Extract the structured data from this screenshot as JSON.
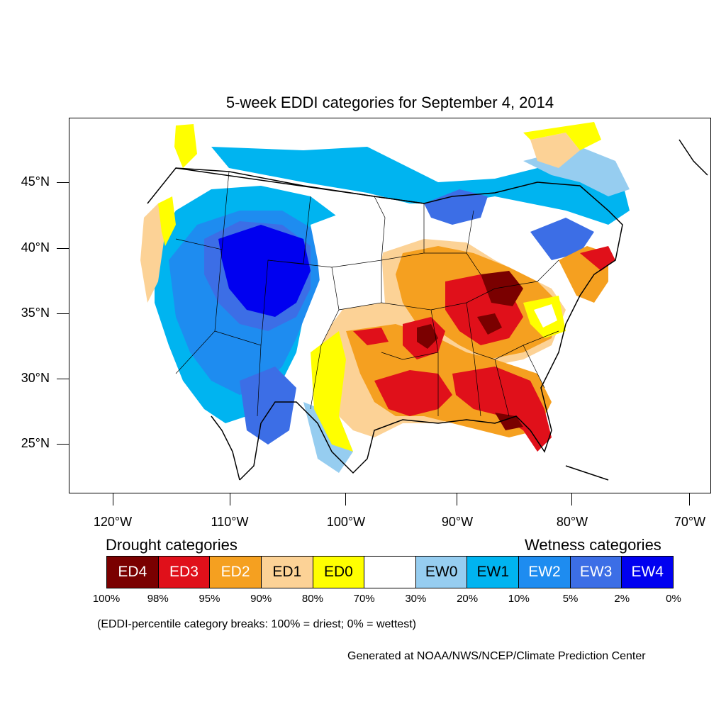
{
  "title": "5-week EDDI categories for September 4, 2014",
  "axes": {
    "lat_labels": [
      "45°N",
      "40°N",
      "35°N",
      "30°N",
      "25°N"
    ],
    "lon_labels": [
      "120°W",
      "110°W",
      "100°W",
      "90°W",
      "80°W",
      "70°W"
    ]
  },
  "legend": {
    "drought_title": "Drought categories",
    "wetness_title": "Wetness categories",
    "categories": [
      {
        "label": "ED4",
        "color": "#7a0000",
        "text_color": "#ffffff"
      },
      {
        "label": "ED3",
        "color": "#e0101a",
        "text_color": "#ffffff"
      },
      {
        "label": "ED2",
        "color": "#f5a020",
        "text_color": "#ffffff"
      },
      {
        "label": "ED1",
        "color": "#fcd296",
        "text_color": "#000000"
      },
      {
        "label": "ED0",
        "color": "#ffff00",
        "text_color": "#000000"
      },
      {
        "label": "",
        "color": "#ffffff",
        "text_color": "#000000"
      },
      {
        "label": "EW0",
        "color": "#96cdf0",
        "text_color": "#000000"
      },
      {
        "label": "EW1",
        "color": "#00b4f0",
        "text_color": "#000000"
      },
      {
        "label": "EW2",
        "color": "#1e8cf0",
        "text_color": "#ffffff"
      },
      {
        "label": "EW3",
        "color": "#3c6ee6",
        "text_color": "#ffffff"
      },
      {
        "label": "EW4",
        "color": "#0000f0",
        "text_color": "#ffffff"
      }
    ],
    "breaks": [
      "100%",
      "98%",
      "95%",
      "90%",
      "80%",
      "70%",
      "30%",
      "20%",
      "10%",
      "5%",
      "2%",
      "0%"
    ]
  },
  "note": "(EDDI-percentile category breaks: 100% = driest; 0% = wettest)",
  "credit": "Generated at NOAA/NWS/NCEP/Climate Prediction Center"
}
